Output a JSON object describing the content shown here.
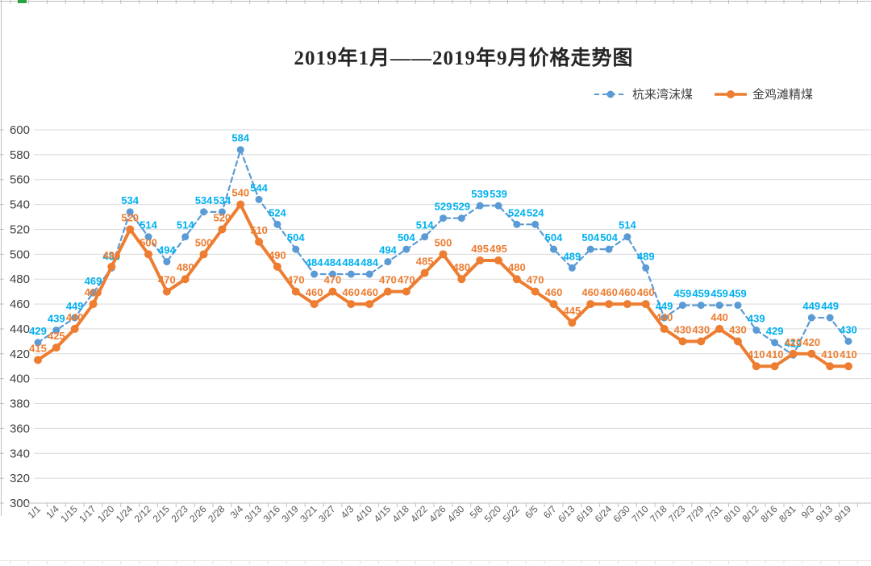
{
  "title": "2019年1月——2019年9月价格走势图",
  "chart_data": {
    "type": "line",
    "title": "2019年1月——2019年9月价格走势图",
    "categories": [
      "1/1",
      "1/4",
      "1/15",
      "1/17",
      "1/20",
      "1/24",
      "2/12",
      "2/15",
      "2/23",
      "2/26",
      "2/28",
      "3/4",
      "3/13",
      "3/16",
      "3/19",
      "3/21",
      "3/27",
      "4/3",
      "4/10",
      "4/15",
      "4/18",
      "4/22",
      "4/26",
      "4/30",
      "5/8",
      "5/20",
      "5/22",
      "6/5",
      "6/7",
      "6/13",
      "6/19",
      "6/24",
      "6/30",
      "7/10",
      "7/18",
      "7/23",
      "7/29",
      "7/31",
      "8/10",
      "8/12",
      "8/16",
      "8/31",
      "9/3",
      "9/13",
      "9/19"
    ],
    "series": [
      {
        "name": "杭来湾沫煤",
        "line_style": "dashed",
        "marker": "circle",
        "line_color": "#5B9BD5",
        "label_color": "#00B0F0",
        "values": [
          429,
          439,
          449,
          469,
          489,
          534,
          514,
          494,
          514,
          534,
          534,
          584,
          544,
          524,
          504,
          484,
          484,
          484,
          484,
          494,
          504,
          514,
          529,
          529,
          539,
          539,
          524,
          524,
          504,
          489,
          504,
          504,
          514,
          489,
          449,
          459,
          459,
          459,
          459,
          439,
          429,
          419,
          449,
          449,
          430
        ]
      },
      {
        "name": "金鸡滩精煤",
        "line_style": "solid",
        "marker": "circle",
        "line_color": "#ED7D31",
        "label_color": "#ED7D31",
        "values": [
          415,
          425,
          440,
          460,
          490,
          520,
          500,
          470,
          480,
          500,
          520,
          540,
          510,
          490,
          470,
          460,
          470,
          460,
          460,
          470,
          470,
          485,
          500,
          480,
          495,
          495,
          480,
          470,
          460,
          445,
          460,
          460,
          460,
          460,
          440,
          430,
          430,
          440,
          430,
          410,
          410,
          420,
          420,
          410,
          410
        ]
      }
    ],
    "ylim": [
      300,
      600
    ],
    "ytick_step": 20,
    "grid": true,
    "data_labels": true,
    "legend_position": "top-right",
    "grid_color": "#D9D9D9",
    "axis_color": "#BFBFBF",
    "tick_label_color": "#404040",
    "x_label_color": "#595959",
    "edge_mark_color": "#27A343"
  }
}
